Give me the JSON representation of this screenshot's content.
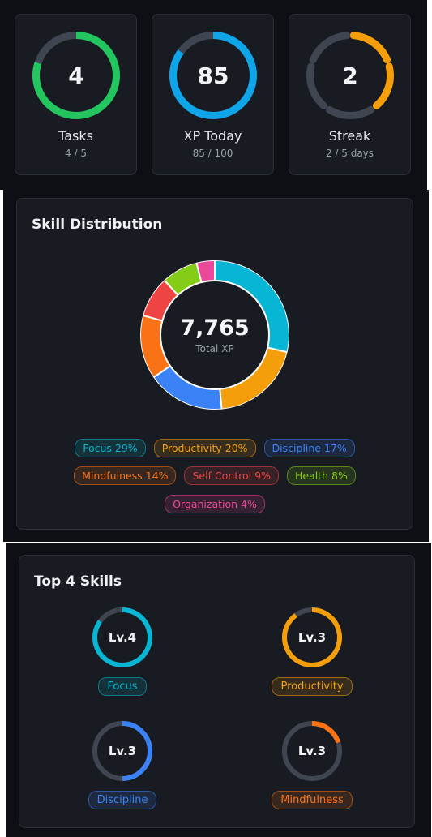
{
  "stats": [
    {
      "value": "4",
      "label": "Tasks",
      "sub": "4 / 5",
      "progress": 0.8,
      "color": "#22c55e",
      "segments": 1
    },
    {
      "value": "85",
      "label": "XP Today",
      "sub": "85 / 100",
      "progress": 0.85,
      "color": "#0ea5e9",
      "segments": 1
    },
    {
      "value": "2",
      "label": "Streak",
      "sub": "2 / 5 days",
      "progress": 0.4,
      "color": "#f59e0b",
      "segments": 5
    }
  ],
  "distribution": {
    "title": "Skill Distribution",
    "total": "7,765",
    "total_caption": "Total XP",
    "skills": [
      {
        "name": "Focus",
        "percent": 29,
        "label": "Focus 29%",
        "color": "#06b6d4"
      },
      {
        "name": "Productivity",
        "percent": 20,
        "label": "Productivity 20%",
        "color": "#f59e0b"
      },
      {
        "name": "Discipline",
        "percent": 17,
        "label": "Discipline 17%",
        "color": "#3b82f6"
      },
      {
        "name": "Mindfulness",
        "percent": 14,
        "label": "Mindfulness 14%",
        "color": "#f97316"
      },
      {
        "name": "Self Control",
        "percent": 9,
        "label": "Self Control 9%",
        "color": "#ef4444"
      },
      {
        "name": "Health",
        "percent": 8,
        "label": "Health 8%",
        "color": "#84cc16"
      },
      {
        "name": "Organization",
        "percent": 4,
        "label": "Organization 4%",
        "color": "#ec4899"
      }
    ]
  },
  "top_skills": {
    "title": "Top 4 Skills",
    "items": [
      {
        "level": "Lv.4",
        "name": "Focus",
        "progress": 0.85,
        "color": "#06b6d4"
      },
      {
        "level": "Lv.3",
        "name": "Productivity",
        "progress": 0.9,
        "color": "#f59e0b"
      },
      {
        "level": "Lv.3",
        "name": "Discipline",
        "progress": 0.5,
        "color": "#3b82f6"
      },
      {
        "level": "Lv.3",
        "name": "Mindfulness",
        "progress": 0.2,
        "color": "#f97316"
      }
    ]
  }
}
